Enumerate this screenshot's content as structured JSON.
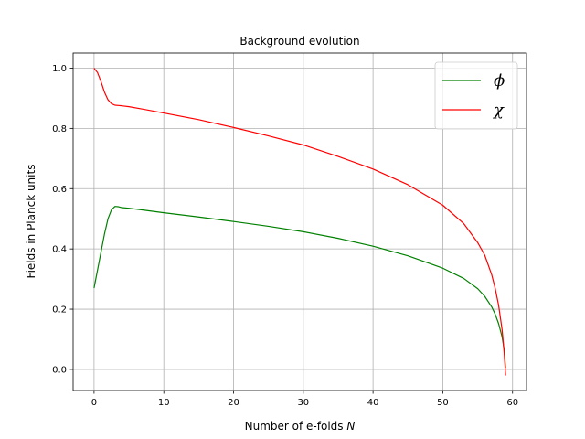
{
  "chart_data": {
    "type": "line",
    "title": "Background evolution",
    "xlabel": "Number of e-folds",
    "xlabel_var": "N",
    "ylabel": "Fields in Planck units",
    "xlim": [
      -3,
      62
    ],
    "ylim": [
      -0.07,
      1.05
    ],
    "xticks": [
      0,
      10,
      20,
      30,
      40,
      50,
      60
    ],
    "yticks": [
      0.0,
      0.2,
      0.4,
      0.6,
      0.8,
      1.0
    ],
    "grid": true,
    "legend_position": "top-right",
    "series": [
      {
        "name": "ϕ",
        "color": "#008000",
        "x": [
          0,
          0.5,
          1,
          1.5,
          2,
          2.5,
          3,
          3.5,
          4,
          5,
          7,
          10,
          15,
          20,
          25,
          30,
          35,
          40,
          45,
          50,
          53,
          55,
          56,
          57,
          57.5,
          58,
          58.5,
          58.8,
          59
        ],
        "y": [
          0.27,
          0.33,
          0.39,
          0.45,
          0.5,
          0.53,
          0.541,
          0.54,
          0.537,
          0.535,
          0.529,
          0.52,
          0.506,
          0.491,
          0.475,
          0.457,
          0.435,
          0.409,
          0.377,
          0.336,
          0.302,
          0.268,
          0.243,
          0.208,
          0.184,
          0.152,
          0.108,
          0.065,
          0.005
        ]
      },
      {
        "name": "χ",
        "color": "#ff0000",
        "x": [
          0,
          0.5,
          1,
          1.5,
          2,
          2.5,
          3,
          3.5,
          4,
          5,
          7,
          10,
          15,
          20,
          25,
          30,
          35,
          40,
          45,
          50,
          53,
          55,
          56,
          57,
          57.5,
          58,
          58.5,
          58.8,
          59
        ],
        "y": [
          1.0,
          0.985,
          0.955,
          0.92,
          0.895,
          0.882,
          0.877,
          0.876,
          0.875,
          0.872,
          0.864,
          0.851,
          0.829,
          0.803,
          0.775,
          0.745,
          0.707,
          0.665,
          0.613,
          0.545,
          0.484,
          0.421,
          0.38,
          0.315,
          0.27,
          0.213,
          0.132,
          0.055,
          -0.02
        ]
      }
    ]
  }
}
